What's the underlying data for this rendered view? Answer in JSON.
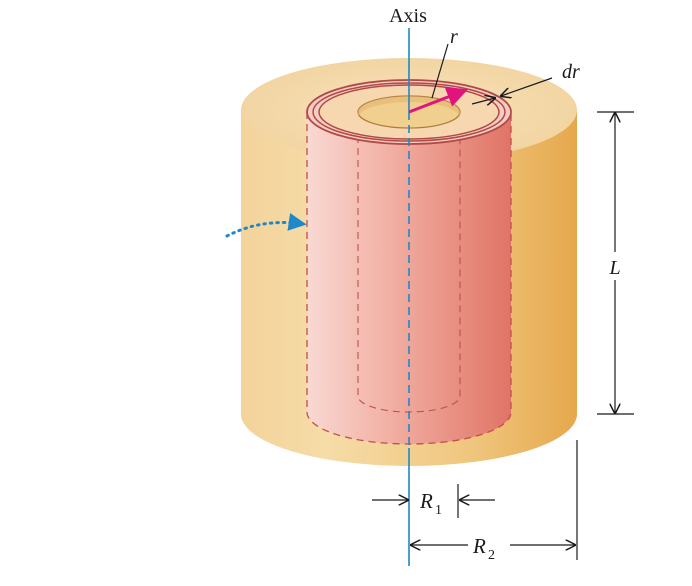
{
  "labels": {
    "axis": "Axis",
    "r": "r",
    "dr": "dr",
    "L": "L",
    "R1_letter": "R",
    "R1_sub": "1",
    "R2_letter": "R",
    "R2_sub": "2"
  },
  "colors": {
    "outer_cylinder": "#e9b45a",
    "outer_top": "#f5dcae",
    "shell_light": "#f6cfc8",
    "shell_dark": "#e07a6c",
    "shell_outline": "#c0504a",
    "axis_line": "#1e88c8",
    "radius_arrow": "#e0147c",
    "pointer_dots": "#1e88c8"
  }
}
